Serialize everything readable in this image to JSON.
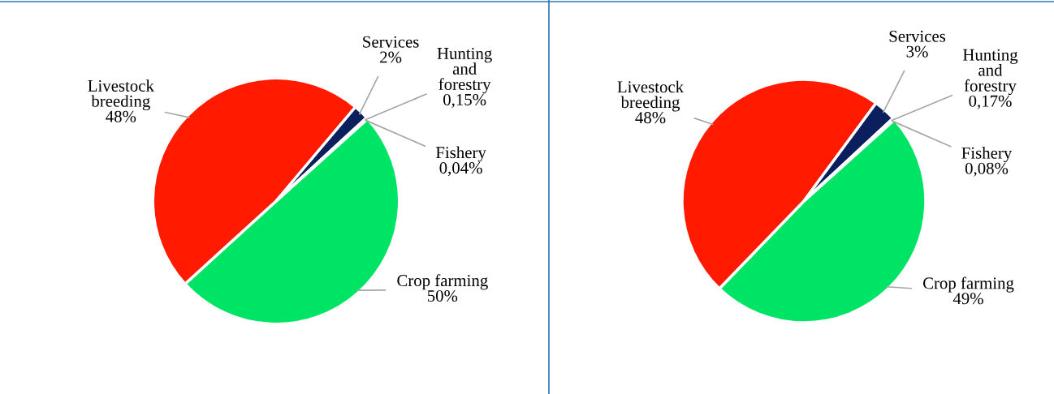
{
  "chart_data": [
    {
      "type": "pie",
      "categories": [
        "Crop farming",
        "Livestock breeding",
        "Services",
        "Hunting and forestry",
        "Fishery"
      ],
      "values": [
        50,
        48,
        2,
        0.15,
        0.04
      ],
      "value_labels": [
        "50%",
        "48%",
        "2%",
        "0,15%",
        "0,04%"
      ],
      "colors": [
        "#00e466",
        "#ff1a00",
        "#0b1f5e",
        "#8fb4e3",
        "#c9c9c9"
      ]
    },
    {
      "type": "pie",
      "categories": [
        "Crop farming",
        "Livestock breeding",
        "Services",
        "Hunting and forestry",
        "Fishery"
      ],
      "values": [
        49,
        48,
        3,
        0.17,
        0.08
      ],
      "value_labels": [
        "49%",
        "48%",
        "3%",
        "0,17%",
        "0,08%"
      ],
      "colors": [
        "#00e466",
        "#ff1a00",
        "#0b1f5e",
        "#8fb4e3",
        "#c9c9c9"
      ]
    }
  ]
}
